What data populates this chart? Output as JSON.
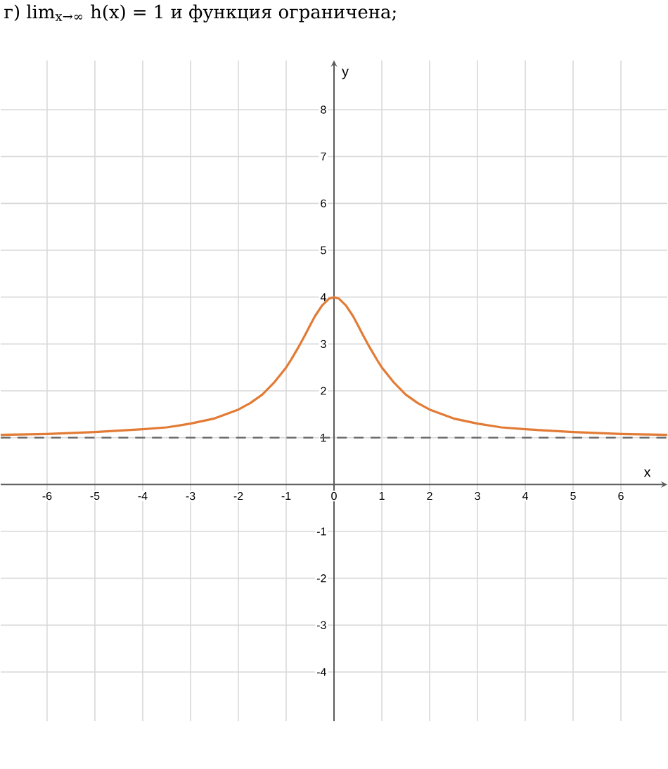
{
  "chart_data": {
    "type": "line",
    "title": "г) lim$_{x→∞}$ h(x) = 1 и функция ограничена;",
    "xlabel": "x",
    "ylabel": "y",
    "xlim": [
      -6.97,
      6.97
    ],
    "ylim": [
      -5.05,
      9.05
    ],
    "xticks": [
      -6,
      -5,
      -4,
      -3,
      -2,
      -1,
      0,
      1,
      2,
      3,
      4,
      5,
      6
    ],
    "yticks": [
      -4,
      -3,
      -2,
      -1,
      1,
      2,
      3,
      4,
      5,
      6,
      7,
      8
    ],
    "grid": true,
    "line_style": "solid",
    "x": [
      -6.97,
      -6,
      -5,
      -4,
      -3.5,
      -3,
      -2.5,
      -2,
      -1.75,
      -1.5,
      -1.25,
      -1,
      -0.9,
      -0.75,
      -0.6,
      -0.5,
      -0.4,
      -0.25,
      -0.1,
      0,
      0.1,
      0.25,
      0.4,
      0.5,
      0.6,
      0.75,
      0.9,
      1,
      1.25,
      1.5,
      1.75,
      2,
      2.5,
      3,
      3.5,
      4,
      5,
      6,
      6.97
    ],
    "series": [
      {
        "color": "#e27b35",
        "values": [
          1.06,
          1.08,
          1.12,
          1.18,
          1.22,
          1.3,
          1.41,
          1.6,
          1.74,
          1.92,
          2.18,
          2.5,
          2.66,
          2.92,
          3.2,
          3.4,
          3.59,
          3.82,
          3.97,
          4,
          3.97,
          3.82,
          3.59,
          3.4,
          3.2,
          2.92,
          2.66,
          2.5,
          2.18,
          1.92,
          1.74,
          1.6,
          1.41,
          1.3,
          1.22,
          1.18,
          1.12,
          1.08,
          1.06
        ]
      }
    ],
    "ref_lines": [
      {
        "axis": "y",
        "value": 1,
        "color": "#666666",
        "line_style": "dashed"
      }
    ]
  }
}
